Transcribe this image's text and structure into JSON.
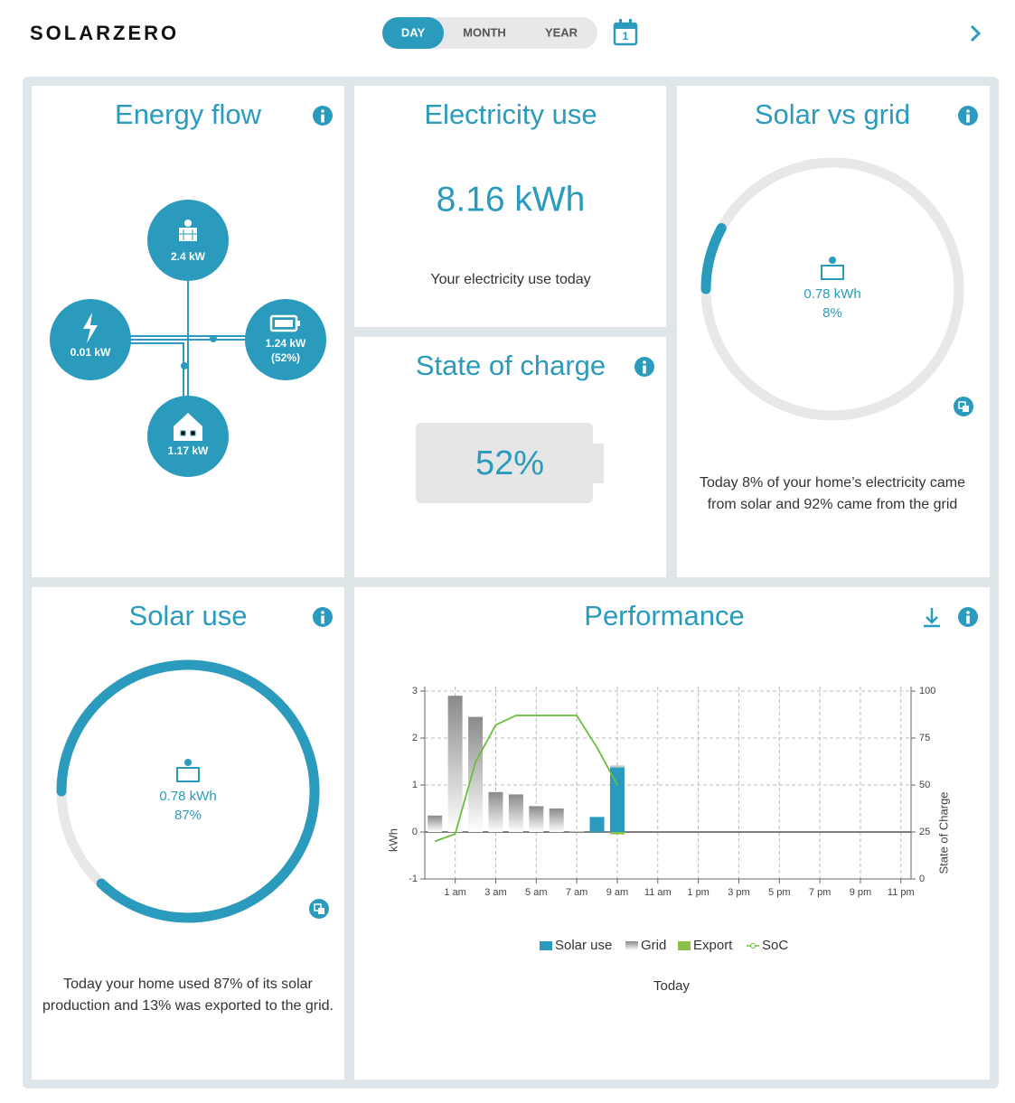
{
  "header": {
    "logo": "SOLARZERO",
    "tabs": [
      "DAY",
      "MONTH",
      "YEAR"
    ],
    "active_tab": 0,
    "calendar_day": "1"
  },
  "energy_flow": {
    "title": "Energy flow",
    "solar": "2.4 kW",
    "grid": "0.01 kW",
    "battery": "1.24 kW",
    "battery_percent": "(52%)",
    "home": "1.17 kW"
  },
  "electricity_use": {
    "title": "Electricity use",
    "value": "8.16 kWh",
    "caption": "Your electricity use today"
  },
  "state_of_charge": {
    "title": "State of charge",
    "value": "52%"
  },
  "solar_vs_grid": {
    "title": "Solar vs grid",
    "energy": "0.78 kWh",
    "value": 8,
    "value_label": "8%",
    "caption": [
      "Today 8% of your home’s electricity came",
      "from solar and 92% came from the grid"
    ]
  },
  "solar_use": {
    "title": "Solar use",
    "energy": "0.78 kWh",
    "value": 87,
    "value_label": "87%",
    "caption": [
      "Today your home used 87% of its solar",
      "production and 13% was exported to the grid."
    ]
  },
  "performance": {
    "title": "Performance",
    "chart": {
      "type": "bar",
      "categories": [
        null,
        "1 am",
        null,
        "3 am",
        null,
        "5 am",
        null,
        "7 am",
        null,
        "9 am",
        null,
        "11 am",
        null,
        "1 pm",
        null,
        "3 pm",
        null,
        "5 pm",
        null,
        "7 pm",
        null,
        "9 pm",
        null,
        "11 pm"
      ],
      "series": [
        {
          "name": "Solar use",
          "color": "#2a9bbd",
          "values": [
            0,
            0,
            0,
            0,
            0,
            0,
            0,
            0,
            0.32,
            1.38,
            0,
            0,
            0,
            0,
            0,
            0,
            0,
            0,
            0,
            0,
            0,
            0,
            0,
            0
          ]
        },
        {
          "name": "Grid",
          "color": "#8a8a8a",
          "values": [
            0.35,
            2.9,
            2.45,
            0.85,
            0.8,
            0.55,
            0.5,
            0.02,
            0,
            0.03,
            0,
            0,
            0,
            0,
            0,
            0,
            0,
            0,
            0,
            0,
            0,
            0,
            0,
            0
          ]
        },
        {
          "name": "Export",
          "color": "#8dc04a",
          "values": [
            0,
            0,
            0,
            0,
            0,
            0,
            0,
            0,
            0,
            -0.05,
            0,
            0,
            0,
            0,
            0,
            0,
            0,
            0,
            0,
            0,
            0,
            0,
            0,
            0
          ]
        },
        {
          "name": "SoC",
          "color": "#6cbf3c",
          "axis": "y2",
          "values": [
            20,
            24,
            62,
            82,
            87,
            87,
            87,
            87,
            70,
            50,
            null,
            null,
            null,
            null,
            null,
            null,
            null,
            null,
            null,
            null,
            null,
            null,
            null,
            null
          ]
        }
      ],
      "ylim": [
        -1,
        3
      ],
      "yticks": [
        -1,
        0,
        1,
        2,
        3
      ],
      "y2lim": [
        0,
        100
      ],
      "y2ticks": [
        0,
        25,
        50,
        75,
        100
      ],
      "ylabel": "kWh",
      "y2label": "State of Charge",
      "xlabel": "Today",
      "grid": true
    }
  }
}
